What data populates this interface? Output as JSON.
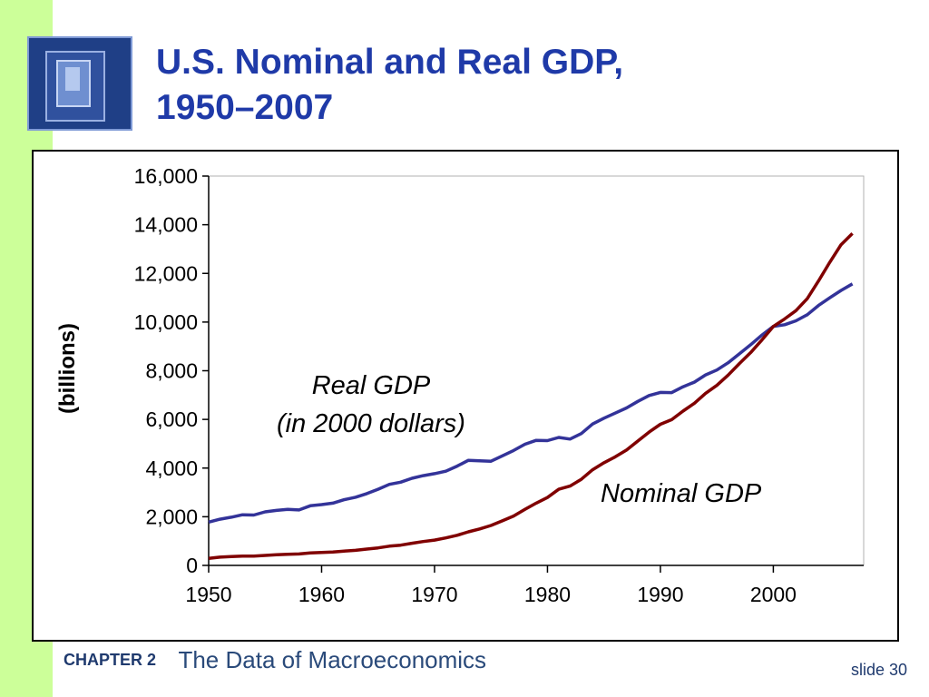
{
  "slide": {
    "title_line1": "U.S. Nominal and Real GDP,",
    "title_line2": "1950–2007",
    "footer_chapter": "CHAPTER 2",
    "footer_subject": "The Data of Macroeconomics",
    "slide_number": "slide 30",
    "colors": {
      "title": "#1f3aa8",
      "strip": "#ccff99",
      "footer": "#1f3a6e"
    }
  },
  "chart_data": {
    "type": "line",
    "title": "",
    "xlabel": "",
    "ylabel": "(billions)",
    "xlim": [
      1950,
      2008
    ],
    "ylim": [
      0,
      16000
    ],
    "grid": false,
    "y_ticks": [
      "0",
      "2,000",
      "4,000",
      "6,000",
      "8,000",
      "10,000",
      "12,000",
      "14,000",
      "16,000"
    ],
    "x_ticks": [
      "1950",
      "1960",
      "1970",
      "1980",
      "1990",
      "2000"
    ],
    "annotations": {
      "real_line1": "Real GDP",
      "real_line2": "(in 2000 dollars)",
      "nominal": "Nominal GDP"
    },
    "series": [
      {
        "label": "Real GDP (in 2000 dollars)",
        "color": "#333399",
        "x": [
          1950,
          1951,
          1952,
          1953,
          1954,
          1955,
          1956,
          1957,
          1958,
          1959,
          1960,
          1961,
          1962,
          1963,
          1964,
          1965,
          1966,
          1967,
          1968,
          1969,
          1970,
          1971,
          1972,
          1973,
          1974,
          1975,
          1976,
          1977,
          1978,
          1979,
          1980,
          1981,
          1982,
          1983,
          1984,
          1985,
          1986,
          1987,
          1988,
          1989,
          1990,
          1991,
          1992,
          1993,
          1994,
          1995,
          1996,
          1997,
          1998,
          1999,
          2000,
          2001,
          2002,
          2003,
          2004,
          2005,
          2006,
          2007
        ],
        "y": [
          1780,
          1900,
          1980,
          2080,
          2070,
          2200,
          2260,
          2300,
          2280,
          2450,
          2500,
          2560,
          2700,
          2800,
          2950,
          3130,
          3330,
          3420,
          3580,
          3690,
          3770,
          3870,
          4080,
          4320,
          4300,
          4280,
          4500,
          4720,
          4980,
          5140,
          5130,
          5260,
          5190,
          5420,
          5810,
          6050,
          6260,
          6470,
          6740,
          6980,
          7110,
          7100,
          7340,
          7530,
          7830,
          8030,
          8330,
          8700,
          9070,
          9470,
          9820,
          9890,
          10050,
          10300,
          10680,
          11000,
          11300,
          11570
        ]
      },
      {
        "label": "Nominal GDP",
        "color": "#800000",
        "x": [
          1950,
          1951,
          1952,
          1953,
          1954,
          1955,
          1956,
          1957,
          1958,
          1959,
          1960,
          1961,
          1962,
          1963,
          1964,
          1965,
          1966,
          1967,
          1968,
          1969,
          1970,
          1971,
          1972,
          1973,
          1974,
          1975,
          1976,
          1977,
          1978,
          1979,
          1980,
          1981,
          1982,
          1983,
          1984,
          1985,
          1986,
          1987,
          1988,
          1989,
          1990,
          1991,
          1992,
          1993,
          1994,
          1995,
          1996,
          1997,
          1998,
          1999,
          2000,
          2001,
          2002,
          2003,
          2004,
          2005,
          2006,
          2007
        ],
        "y": [
          290,
          340,
          360,
          380,
          380,
          410,
          440,
          460,
          470,
          510,
          530,
          550,
          590,
          620,
          670,
          720,
          790,
          830,
          910,
          980,
          1040,
          1130,
          1240,
          1380,
          1500,
          1640,
          1830,
          2030,
          2300,
          2560,
          2790,
          3130,
          3260,
          3540,
          3930,
          4220,
          4460,
          4740,
          5110,
          5480,
          5800,
          5990,
          6340,
          6660,
          7070,
          7400,
          7820,
          8300,
          8750,
          9270,
          9820,
          10130,
          10470,
          10960,
          11690,
          12460,
          13180,
          13640
        ]
      }
    ]
  }
}
